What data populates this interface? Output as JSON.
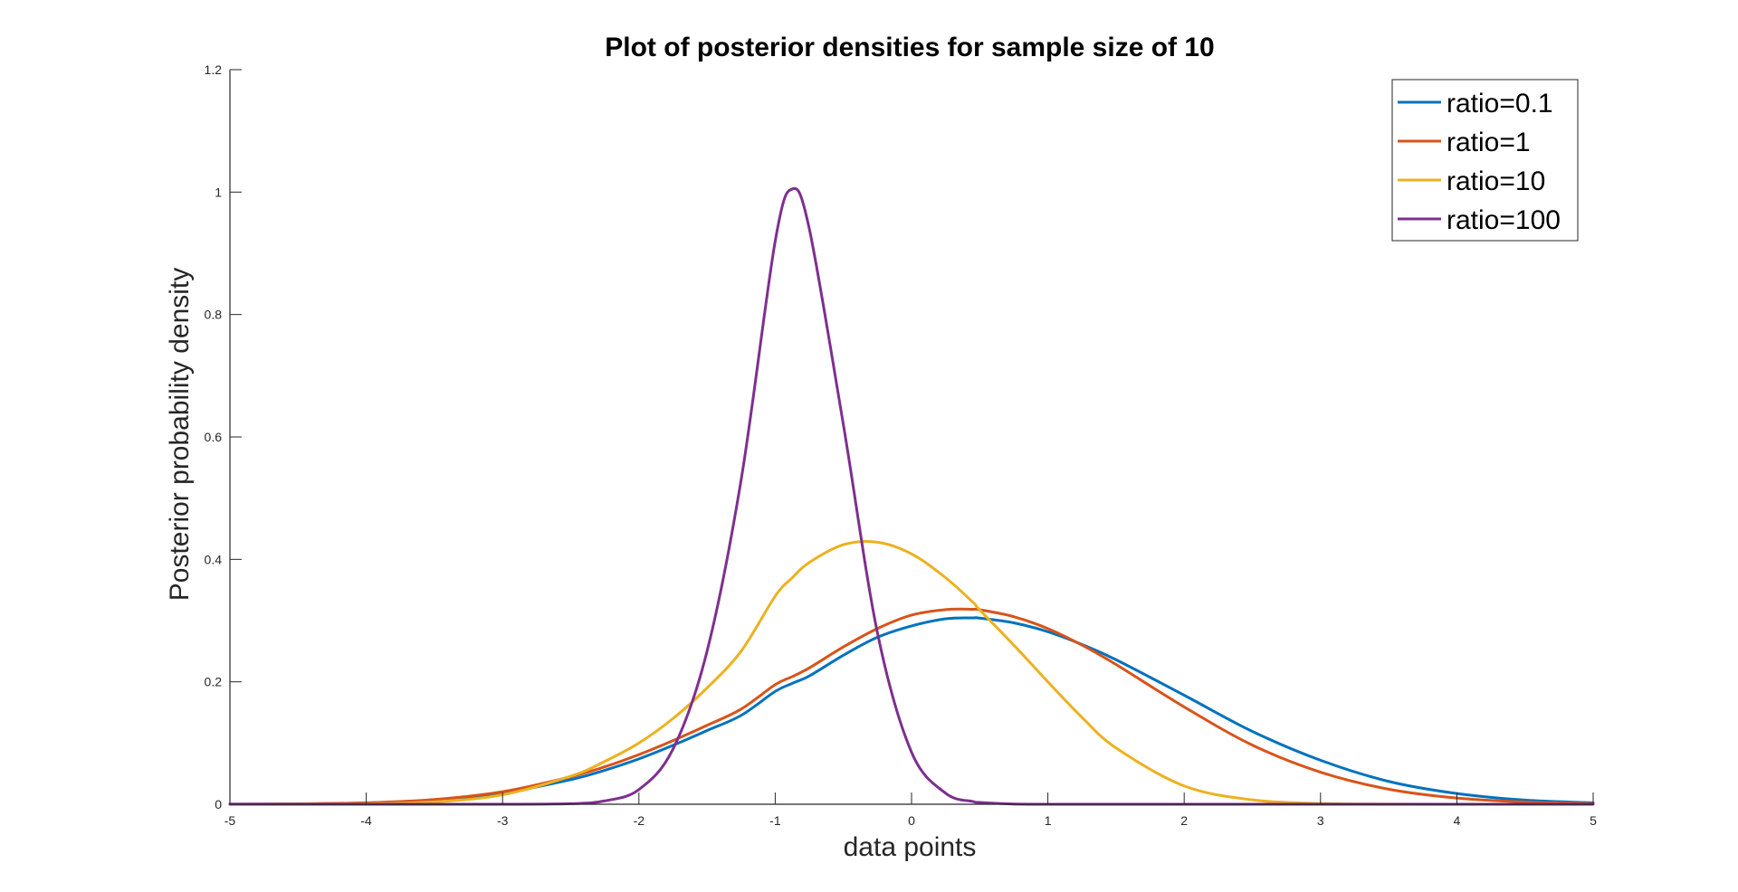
{
  "chart_data": {
    "type": "line",
    "title": "Plot of posterior densities for sample size of 10",
    "xlabel": "data points",
    "ylabel": "Posterior probability density",
    "xlim": [
      -5,
      5
    ],
    "ylim": [
      0,
      1.2
    ],
    "xticks": [
      "-5",
      "-4",
      "-3",
      "-2",
      "-1",
      "0",
      "1",
      "2",
      "3",
      "4",
      "5"
    ],
    "yticks": [
      "0",
      "0.2",
      "0.4",
      "0.6",
      "0.8",
      "1",
      "1.2"
    ],
    "grid": false,
    "legend_position": "top-right",
    "x": [
      -5,
      -4.5,
      -4,
      -3.5,
      -3,
      -2.5,
      -2.25,
      -2,
      -1.75,
      -1.5,
      -1.25,
      -1,
      -0.875,
      -0.75,
      -0.5,
      -0.25,
      0,
      0.25,
      0.45,
      0.5,
      0.75,
      1,
      1.25,
      1.5,
      2,
      2.5,
      3,
      3.5,
      4,
      4.5,
      5
    ],
    "series": [
      {
        "name": "ratio=0.1",
        "color": "#0072BD",
        "values": [
          0.0001,
          0.0005,
          0.0021,
          0.0068,
          0.0183,
          0.0403,
          0.0556,
          0.0741,
          0.0962,
          0.1204,
          0.1452,
          0.1843,
          0.1975,
          0.2096,
          0.2434,
          0.2728,
          0.2913,
          0.303,
          0.3045,
          0.304,
          0.2963,
          0.2818,
          0.261,
          0.2361,
          0.1781,
          0.119,
          0.0719,
          0.0373,
          0.0175,
          0.0068,
          0.0023
        ]
      },
      {
        "name": "ratio=1",
        "color": "#D95319",
        "values": [
          0.0001,
          0.0006,
          0.0024,
          0.0078,
          0.0205,
          0.0449,
          0.0612,
          0.0811,
          0.104,
          0.129,
          0.1555,
          0.1954,
          0.2085,
          0.2227,
          0.257,
          0.2871,
          0.309,
          0.318,
          0.3185,
          0.3178,
          0.3064,
          0.2869,
          0.26,
          0.2283,
          0.159,
          0.0966,
          0.0524,
          0.0246,
          0.0101,
          0.0036,
          0.0011
        ]
      },
      {
        "name": "ratio=10",
        "color": "#EDB120",
        "values": [
          0.0,
          0.0001,
          0.0008,
          0.0039,
          0.0155,
          0.0459,
          0.07,
          0.1,
          0.14,
          0.19,
          0.25,
          0.34,
          0.37,
          0.395,
          0.424,
          0.428,
          0.409,
          0.37,
          0.33,
          0.3175,
          0.26,
          0.2,
          0.142,
          0.092,
          0.0299,
          0.0072,
          0.0013,
          0.0002,
          0.0,
          0.0,
          0.0
        ]
      },
      {
        "name": "ratio=100",
        "color": "#7E2F8E",
        "values": [
          0.0,
          0.0,
          0.0,
          0.0,
          0.0,
          0.0009,
          0.0055,
          0.024,
          0.09,
          0.25,
          0.53,
          0.92,
          1.005,
          0.94,
          0.62,
          0.28,
          0.085,
          0.018,
          0.0045,
          0.003,
          0.0004,
          0.0,
          0.0,
          0.0,
          0.0,
          0.0,
          0.0,
          0.0,
          0.0,
          0.0,
          0.0
        ]
      }
    ]
  }
}
